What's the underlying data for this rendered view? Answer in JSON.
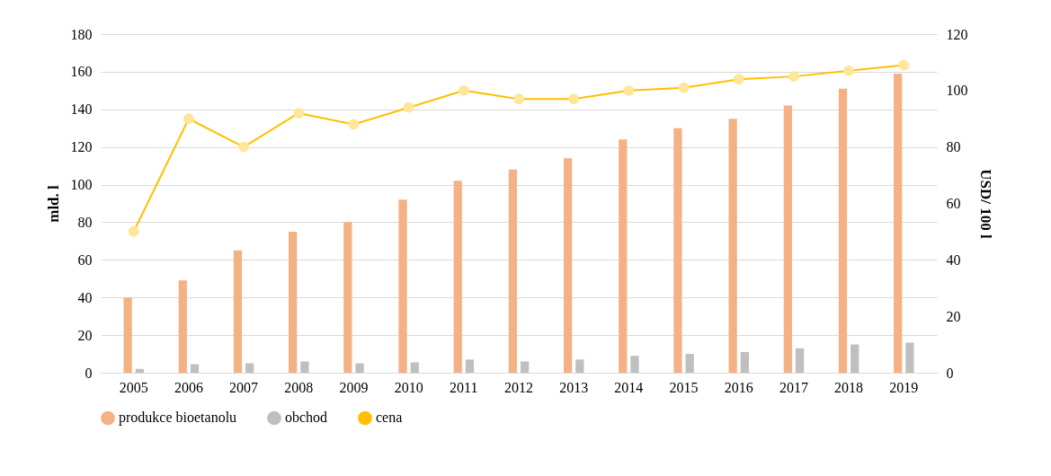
{
  "chart_data": {
    "type": "bar",
    "categories": [
      "2005",
      "2006",
      "2007",
      "2008",
      "2009",
      "2010",
      "2011",
      "2012",
      "2013",
      "2014",
      "2015",
      "2016",
      "2017",
      "2018",
      "2019"
    ],
    "ylabel": "mld. l",
    "y2label": "USD/ 100 l",
    "ylim": [
      0,
      180
    ],
    "yticks": [
      0,
      20,
      40,
      60,
      80,
      100,
      120,
      140,
      160,
      180
    ],
    "y2lim": [
      0,
      120
    ],
    "y2ticks": [
      0,
      20,
      40,
      60,
      80,
      100,
      120
    ],
    "grid": "y",
    "legend": "bottom",
    "marker": "circle",
    "line_style": "solid",
    "series": [
      {
        "name": "produkce bioetanolu",
        "color": "#f4b183",
        "values": [
          40,
          49,
          65,
          75,
          80,
          92,
          102,
          108,
          114,
          124,
          130,
          135,
          142,
          151,
          159
        ]
      },
      {
        "name": "obchod",
        "color": "#bfbfbf",
        "values": [
          2,
          4.5,
          5,
          6,
          5,
          5.5,
          7,
          6,
          7,
          9,
          10,
          11,
          13,
          15,
          16
        ]
      },
      {
        "name": "cena",
        "type": "line",
        "axis": "y2",
        "color": "#ffc000",
        "values": [
          50,
          90,
          80,
          92,
          88,
          94,
          100,
          97,
          97,
          100,
          101,
          104,
          105,
          107,
          109
        ]
      }
    ]
  }
}
